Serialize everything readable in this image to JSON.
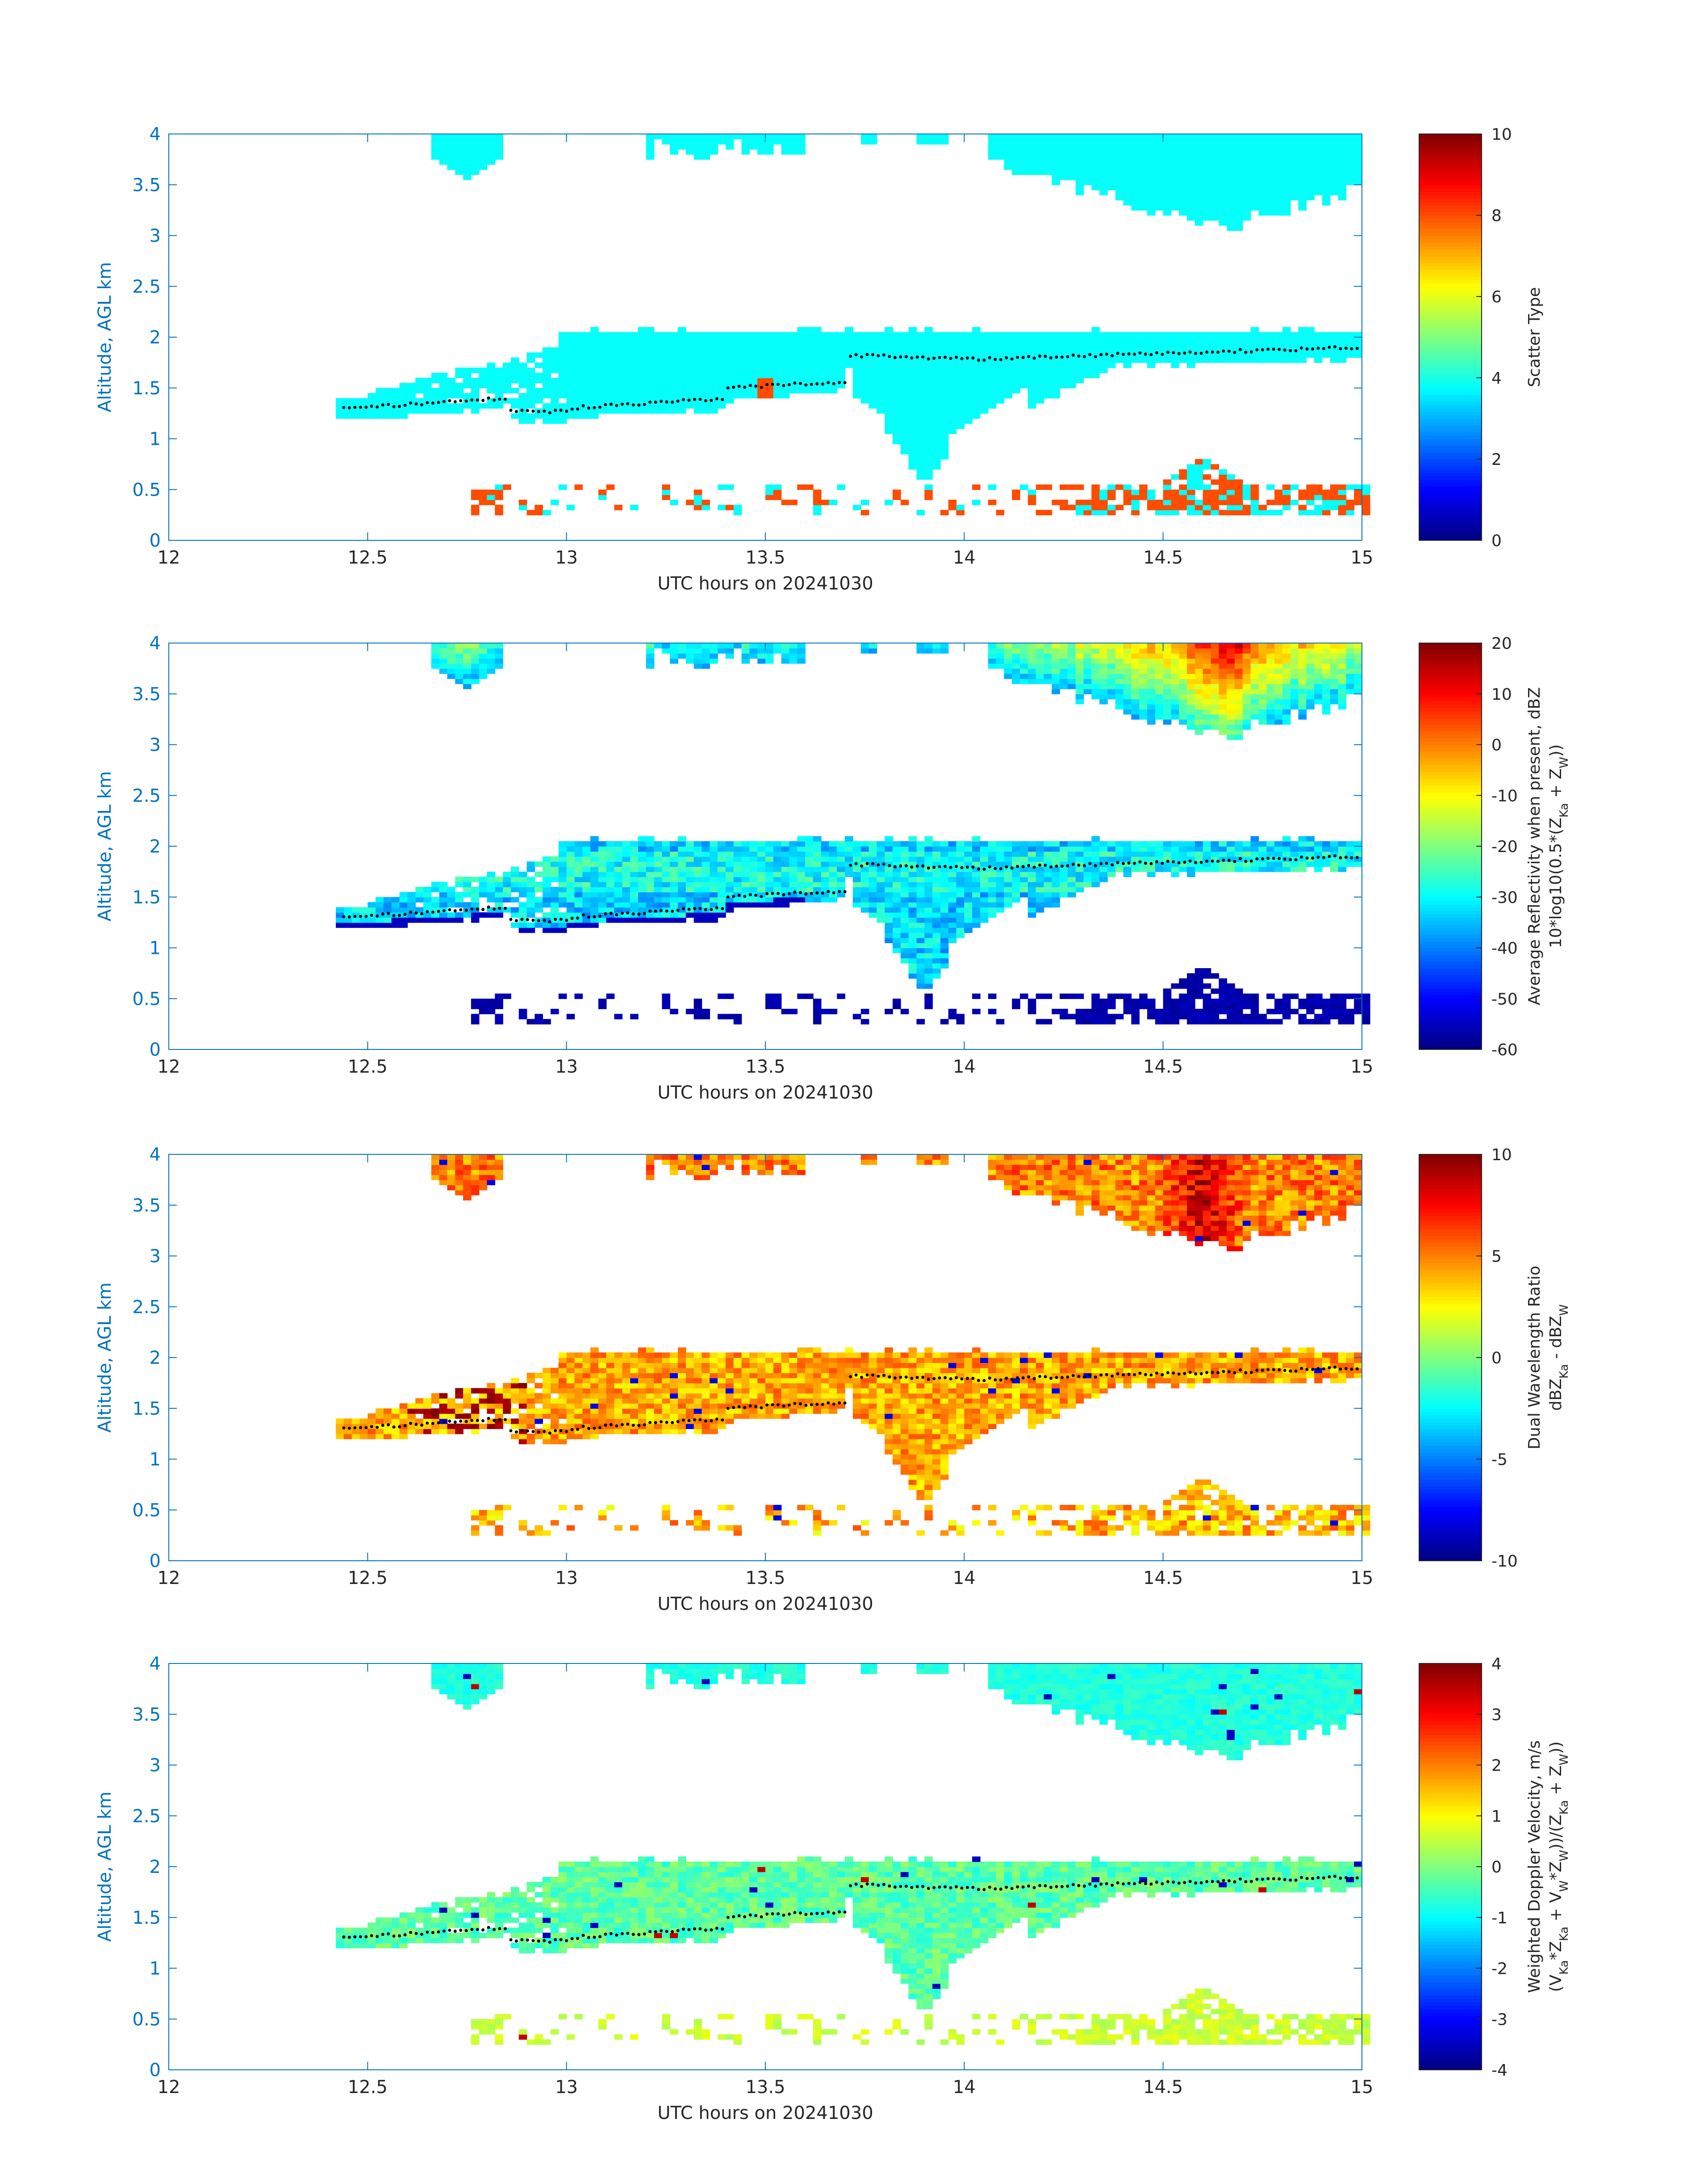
{
  "colors": {
    "axis_blue": "#0072BD",
    "text_dark": "#262626",
    "cloud_cyan": "#33FFCC",
    "scatter_red": "#FF4500",
    "marker_black": "#000000"
  },
  "chart_data": [
    {
      "type": "heatmap",
      "title": "",
      "xlabel": "UTC hours on 20241030",
      "ylabel": "Altitude, AGL km",
      "xlim": [
        12,
        15
      ],
      "ylim": [
        0,
        4
      ],
      "xticks": [
        "12",
        "12.5",
        "13",
        "13.5",
        "14",
        "14.5",
        "15"
      ],
      "yticks": [
        "0",
        "0.5",
        "1",
        "1.5",
        "2",
        "2.5",
        "3",
        "3.5",
        "4"
      ],
      "colorbar": {
        "label_lines": [
          "Scatter Type"
        ],
        "range": [
          0,
          10
        ],
        "ticks": [
          "0",
          "2",
          "4",
          "6",
          "8",
          "10"
        ]
      },
      "dominant_value": 3.8,
      "layers": {
        "upper_cloud": "4.0 km top; present 12.65–12.83, 13.2–13.6, 13.73–13.78, 13.87–13.95, 14.05–15.0 h; base descending to ~3.0 km near 14.65 h",
        "mid_cloud": "~1.25–2.05 km from 12.42 to 15.0 h with fall streaks to ~0.55 km at 13.9 h",
        "low_echoes": "~0.25–0.85 km, scattered 12.75–15.0 h, scatter type ~8 (red) in many gates"
      },
      "marker_track": "cloud-base height dots ~1.3 km at 12.45 h rising to ~1.9 km at 15 h"
    },
    {
      "type": "heatmap",
      "xlabel": "UTC hours on 20241030",
      "ylabel": "Altitude, AGL km",
      "xlim": [
        12,
        15
      ],
      "ylim": [
        0,
        4
      ],
      "xticks": [
        "12",
        "12.5",
        "13",
        "13.5",
        "14",
        "14.5",
        "15"
      ],
      "yticks": [
        "0",
        "0.5",
        "1",
        "1.5",
        "2",
        "2.5",
        "3",
        "3.5",
        "4"
      ],
      "colorbar": {
        "label_lines": [
          "Average Reflectivity when present, dBZ",
          "10*log10(0.5*(Z_Ka + Z_W))"
        ],
        "range": [
          -60,
          20
        ],
        "ticks": [
          "-60",
          "-50",
          "-40",
          "-30",
          "-20",
          "-10",
          "0",
          "10",
          "20"
        ]
      },
      "value_summary": "upper cloud -40 to -10 dBZ (max ~-10 near 14.65 h, 3.9 km); mid cloud -40 to -25 dBZ; edges and low echoes ~-55 dBZ"
    },
    {
      "type": "heatmap",
      "xlabel": "UTC hours on 20241030",
      "ylabel": "Altitude, AGL km",
      "xlim": [
        12,
        15
      ],
      "ylim": [
        0,
        4
      ],
      "xticks": [
        "12",
        "12.5",
        "13",
        "13.5",
        "14",
        "14.5",
        "15"
      ],
      "yticks": [
        "0",
        "0.5",
        "1",
        "1.5",
        "2",
        "2.5",
        "3",
        "3.5",
        "4"
      ],
      "colorbar": {
        "label_lines": [
          "Dual Wavelength Ratio",
          "dBZ_Ka - dBZ_W"
        ],
        "range": [
          -10,
          10
        ],
        "ticks": [
          "-10",
          "-5",
          "0",
          "5",
          "10"
        ]
      },
      "value_summary": "mostly 2 to 6 dB; peaks ~8 dB in upper cloud near 14.6 h and in mid cloud at 12.65–12.85 h"
    },
    {
      "type": "heatmap",
      "xlabel": "UTC hours on 20241030",
      "ylabel": "Altitude, AGL km",
      "xlim": [
        12,
        15
      ],
      "ylim": [
        0,
        4
      ],
      "xticks": [
        "12",
        "12.5",
        "13",
        "13.5",
        "14",
        "14.5",
        "15"
      ],
      "yticks": [
        "0",
        "0.5",
        "1",
        "1.5",
        "2",
        "2.5",
        "3",
        "3.5",
        "4"
      ],
      "colorbar": {
        "label_lines": [
          "Weighted Doppler Velocity, m/s",
          "(V_Ka*Z_Ka + V_W*Z_W))/(Z_Ka + Z_W))"
        ],
        "range": [
          -4,
          4
        ],
        "ticks": [
          "-4",
          "-3",
          "-2",
          "-1",
          "0",
          "1",
          "2",
          "3",
          "4"
        ]
      },
      "value_summary": "upper cloud ~-1 m/s; mid cloud -1 to +0.5 m/s; low echoes ~0 to +1 m/s"
    }
  ]
}
